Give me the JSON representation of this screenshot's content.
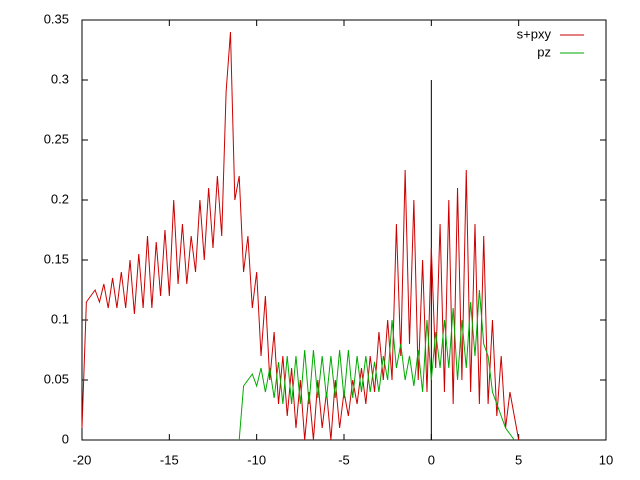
{
  "chart_data": {
    "type": "line",
    "xlim": [
      -20,
      10
    ],
    "xticks": [
      -20,
      -15,
      -10,
      -5,
      0,
      5,
      10
    ],
    "ylim": [
      0,
      0.35
    ],
    "yticks": [
      0,
      0.05,
      0.1,
      0.15,
      0.2,
      0.25,
      0.3,
      0.35
    ],
    "legend": "top-right",
    "series": [
      {
        "name": "s+pxy",
        "color": "#cc0000",
        "x": [
          -20,
          -19.75,
          -19.5,
          -19.25,
          -19,
          -18.75,
          -18.5,
          -18.25,
          -18,
          -17.75,
          -17.5,
          -17.25,
          -17,
          -16.75,
          -16.5,
          -16.25,
          -16,
          -15.75,
          -15.5,
          -15.25,
          -15,
          -14.75,
          -14.5,
          -14.25,
          -14,
          -13.75,
          -13.5,
          -13.25,
          -13,
          -12.75,
          -12.5,
          -12.25,
          -12,
          -11.75,
          -11.5,
          -11.25,
          -11,
          -10.75,
          -10.5,
          -10.25,
          -10,
          -9.75,
          -9.5,
          -9.25,
          -9,
          -8.75,
          -8.5,
          -8.25,
          -8,
          -7.75,
          -7.5,
          -7.25,
          -7,
          -6.75,
          -6.5,
          -6.25,
          -6,
          -5.75,
          -5.5,
          -5.25,
          -5,
          -4.75,
          -4.5,
          -4.25,
          -4,
          -3.75,
          -3.5,
          -3.25,
          -3,
          -2.75,
          -2.5,
          -2.25,
          -2,
          -1.75,
          -1.5,
          -1.25,
          -1,
          -0.75,
          -0.5,
          -0.25,
          0,
          0.25,
          0.5,
          0.75,
          1,
          1.25,
          1.5,
          1.75,
          2,
          2.25,
          2.5,
          2.75,
          3,
          3.25,
          3.5,
          3.75,
          4,
          4.25,
          4.5,
          4.75,
          5
        ],
        "values": [
          0.01,
          0.115,
          0.12,
          0.125,
          0.115,
          0.13,
          0.11,
          0.135,
          0.11,
          0.14,
          0.11,
          0.15,
          0.105,
          0.155,
          0.11,
          0.17,
          0.11,
          0.165,
          0.12,
          0.175,
          0.12,
          0.2,
          0.13,
          0.18,
          0.13,
          0.17,
          0.14,
          0.2,
          0.15,
          0.21,
          0.16,
          0.22,
          0.17,
          0.29,
          0.34,
          0.2,
          0.22,
          0.14,
          0.17,
          0.11,
          0.14,
          0.07,
          0.12,
          0.05,
          0.09,
          0.03,
          0.07,
          0.02,
          0.06,
          0.01,
          0.05,
          0,
          0.04,
          0,
          0.05,
          0.01,
          0.04,
          0,
          0.05,
          0.01,
          0.04,
          0.02,
          0.05,
          0.03,
          0.06,
          0.03,
          0.07,
          0.04,
          0.09,
          0.05,
          0.1,
          0.05,
          0.18,
          0.07,
          0.225,
          0.08,
          0.2,
          0.05,
          0.15,
          0.04,
          0.16,
          0.06,
          0.18,
          0.04,
          0.2,
          0.03,
          0.21,
          0.05,
          0.225,
          0.04,
          0.18,
          0.03,
          0.17,
          0.03,
          0.1,
          0.02,
          0.07,
          0.01,
          0.04,
          0.02,
          0
        ]
      },
      {
        "name": "pz",
        "color": "#00aa00",
        "x": [
          -11,
          -10.75,
          -10.5,
          -10.25,
          -10,
          -9.75,
          -9.5,
          -9.25,
          -9,
          -8.75,
          -8.5,
          -8.25,
          -8,
          -7.75,
          -7.5,
          -7.25,
          -7,
          -6.75,
          -6.5,
          -6.25,
          -6,
          -5.75,
          -5.5,
          -5.25,
          -5,
          -4.75,
          -4.5,
          -4.25,
          -4,
          -3.75,
          -3.5,
          -3.25,
          -3,
          -2.75,
          -2.5,
          -2.25,
          -2,
          -1.75,
          -1.5,
          -1.25,
          -1,
          -0.75,
          -0.5,
          -0.25,
          0,
          0.25,
          0.5,
          0.75,
          1,
          1.25,
          1.5,
          1.75,
          2,
          2.25,
          2.5,
          2.75,
          3,
          3.25,
          3.5,
          3.75,
          4,
          4.25,
          4.5,
          4.75
        ],
        "values": [
          0,
          0.045,
          0.05,
          0.055,
          0.045,
          0.06,
          0.04,
          0.06,
          0.035,
          0.065,
          0.03,
          0.07,
          0.03,
          0.07,
          0.03,
          0.075,
          0.03,
          0.075,
          0.035,
          0.07,
          0.035,
          0.07,
          0.035,
          0.075,
          0.035,
          0.075,
          0.035,
          0.07,
          0.04,
          0.07,
          0.04,
          0.065,
          0.04,
          0.07,
          0.05,
          0.1,
          0.06,
          0.08,
          0.05,
          0.07,
          0.045,
          0.075,
          0.04,
          0.1,
          0.05,
          0.09,
          0.06,
          0.1,
          0.06,
          0.11,
          0.05,
          0.1,
          0.06,
          0.115,
          0.07,
          0.125,
          0.08,
          0.07,
          0.04,
          0.03,
          0.02,
          0.01,
          0.005,
          0
        ]
      }
    ],
    "reference_line": {
      "x": [
        0,
        0
      ],
      "y": [
        0,
        0.3
      ],
      "color": "#000000"
    }
  }
}
